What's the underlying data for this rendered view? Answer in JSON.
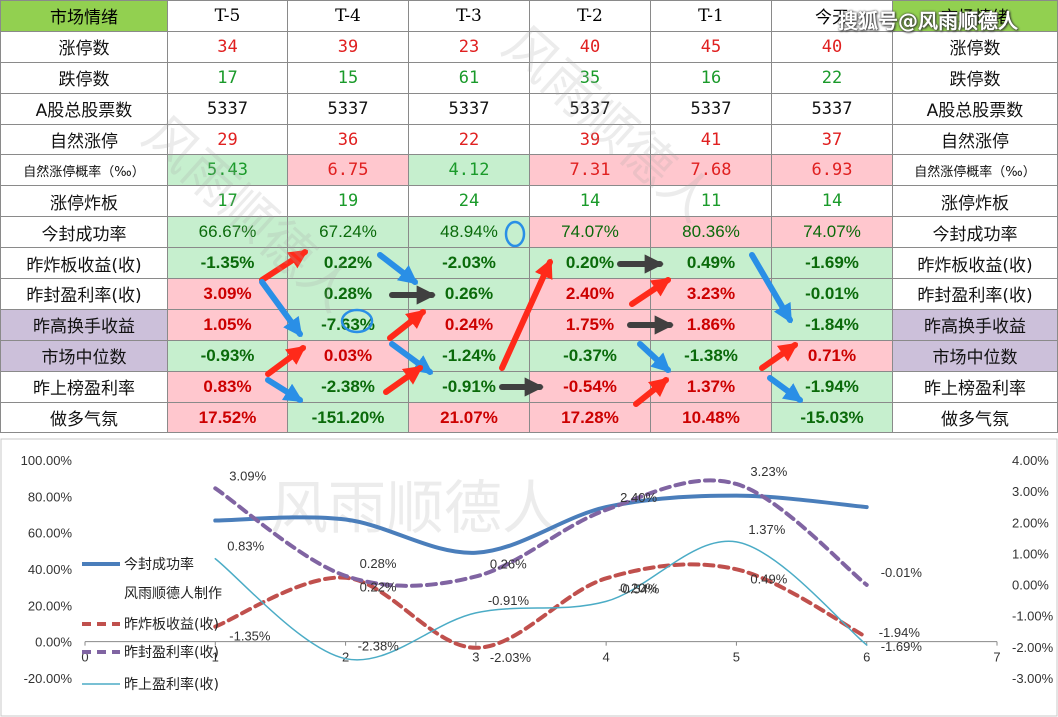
{
  "table": {
    "header": [
      "市场情绪",
      "T-5",
      "T-4",
      "T-3",
      "T-2",
      "T-1",
      "今天",
      "市场情绪"
    ],
    "rows": [
      {
        "label": "涨停数",
        "kind": "num",
        "color": "red",
        "values": [
          "34",
          "39",
          "23",
          "40",
          "45",
          "40"
        ],
        "bg": [
          "w",
          "w",
          "w",
          "w",
          "w",
          "w"
        ]
      },
      {
        "label": "跌停数",
        "kind": "num",
        "color": "green",
        "values": [
          "17",
          "15",
          "61",
          "35",
          "16",
          "22"
        ],
        "bg": [
          "w",
          "w",
          "w",
          "w",
          "w",
          "w"
        ]
      },
      {
        "label": "A股总股票数",
        "kind": "num",
        "color": "black",
        "values": [
          "5337",
          "5337",
          "5337",
          "5337",
          "5337",
          "5337"
        ],
        "bg": [
          "w",
          "w",
          "w",
          "w",
          "w",
          "w"
        ]
      },
      {
        "label": "自然涨停",
        "kind": "num",
        "color": "red",
        "values": [
          "29",
          "36",
          "22",
          "39",
          "41",
          "37"
        ],
        "bg": [
          "w",
          "w",
          "w",
          "w",
          "w",
          "w"
        ]
      },
      {
        "label": "自然涨停概率（‰）",
        "kind": "num",
        "color": "mixed",
        "small": true,
        "values": [
          "5.43",
          "6.75",
          "4.12",
          "7.31",
          "7.68",
          "6.93"
        ],
        "colors": [
          "green",
          "red",
          "green",
          "red",
          "red",
          "red"
        ],
        "bg": [
          "g",
          "r",
          "g",
          "r",
          "r",
          "r"
        ]
      },
      {
        "label": "涨停炸板",
        "kind": "num",
        "color": "green",
        "values": [
          "17",
          "19",
          "24",
          "14",
          "11",
          "14"
        ],
        "bg": [
          "w",
          "w",
          "w",
          "w",
          "w",
          "w"
        ]
      },
      {
        "label": "今封成功率",
        "kind": "pctn",
        "values": [
          "66.67%",
          "67.24%",
          "48.94%",
          "74.07%",
          "80.36%",
          "74.07%"
        ],
        "bg": [
          "g",
          "g",
          "g",
          "r",
          "r",
          "r"
        ]
      },
      {
        "label": "昨炸板收益(收)",
        "kind": "pct",
        "values": [
          "-1.35%",
          "0.22%",
          "-2.03%",
          "0.20%",
          "0.49%",
          "-1.69%"
        ],
        "bg": [
          "g",
          "g",
          "g",
          "g",
          "g",
          "g"
        ]
      },
      {
        "label": "昨封盈利率(收)",
        "kind": "pct",
        "values": [
          "3.09%",
          "0.28%",
          "0.26%",
          "2.40%",
          "3.23%",
          "-0.01%"
        ],
        "bg": [
          "r",
          "g",
          "g",
          "r",
          "r",
          "g"
        ]
      },
      {
        "label": "昨高换手收益",
        "kind": "pct",
        "purple": true,
        "values": [
          "1.05%",
          "-7.63%",
          "0.24%",
          "1.75%",
          "1.86%",
          "-1.84%"
        ],
        "bg": [
          "r",
          "g",
          "r",
          "r",
          "r",
          "g"
        ]
      },
      {
        "label": "市场中位数",
        "kind": "pct",
        "purple": true,
        "values": [
          "-0.93%",
          "0.03%",
          "-1.24%",
          "-0.37%",
          "-1.38%",
          "0.71%"
        ],
        "bg": [
          "g",
          "r",
          "g",
          "g",
          "g",
          "r"
        ]
      },
      {
        "label": "昨上榜盈利率",
        "kind": "pct",
        "values": [
          "0.83%",
          "-2.38%",
          "-0.91%",
          "-0.54%",
          "1.37%",
          "-1.94%"
        ],
        "bg": [
          "r",
          "g",
          "g",
          "r",
          "r",
          "g"
        ]
      },
      {
        "label": "做多气氛",
        "kind": "pct",
        "values": [
          "17.52%",
          "-151.20%",
          "21.07%",
          "17.28%",
          "10.48%",
          "-15.03%"
        ],
        "bg": [
          "r",
          "g",
          "r",
          "r",
          "r",
          "g"
        ]
      }
    ]
  },
  "brand_text": "搜狐号@风雨顺德人",
  "watermark_text": "风雨顺德人",
  "colors": {
    "green_bg": "#c6efce",
    "red_bg": "#ffc7ce",
    "purple_bg": "#ccc0da",
    "header_bg": "#92d050",
    "arrow_red": "#ff2a1a",
    "arrow_blue": "#2a8fe6",
    "arrow_gray": "#404040"
  },
  "chart_data": {
    "type": "line",
    "x": [
      1,
      2,
      3,
      4,
      5,
      6
    ],
    "xlim": [
      0,
      7
    ],
    "xticks": [
      "0",
      "1",
      "2",
      "3",
      "4",
      "5",
      "6",
      "7"
    ],
    "y_left_ticks": [
      "-20.00%",
      "0.00%",
      "20.00%",
      "40.00%",
      "60.00%",
      "80.00%",
      "100.00%"
    ],
    "y_right_ticks": [
      "-3.00%",
      "-2.00%",
      "-1.00%",
      "0.00%",
      "1.00%",
      "2.00%",
      "3.00%",
      "4.00%"
    ],
    "ylim_left": [
      -20,
      100
    ],
    "ylim_right": [
      -3,
      4
    ],
    "series": [
      {
        "name": "今封成功率",
        "axis": "left",
        "style": "solid-thick",
        "color": "#4a7ebb",
        "values": [
          66.67,
          67.24,
          48.94,
          74.07,
          80.36,
          74.07
        ]
      },
      {
        "name": "昨炸板收益(收)",
        "axis": "right",
        "style": "dashed",
        "color": "#c0504d",
        "values": [
          -1.35,
          0.22,
          -2.03,
          0.2,
          0.49,
          -1.69
        ]
      },
      {
        "name": "昨封盈利率(收)",
        "axis": "right",
        "style": "dashed",
        "color": "#8064a2",
        "values": [
          3.09,
          0.28,
          0.26,
          2.4,
          3.23,
          -0.01
        ]
      },
      {
        "name": "昨上盈利率(收)",
        "axis": "right",
        "style": "solid-thin",
        "color": "#4bacc6",
        "values": [
          0.83,
          -2.38,
          -0.91,
          -0.54,
          1.37,
          -1.94
        ]
      }
    ],
    "data_labels": [
      {
        "text": "3.09%",
        "series": 2,
        "i": 0
      },
      {
        "text": "0.28%",
        "series": 2,
        "i": 1
      },
      {
        "text": "0.26%",
        "series": 2,
        "i": 2
      },
      {
        "text": "2.40%",
        "series": 2,
        "i": 3
      },
      {
        "text": "3.23%",
        "series": 2,
        "i": 4
      },
      {
        "text": "-0.01%",
        "series": 2,
        "i": 5
      },
      {
        "text": "-1.35%",
        "series": 1,
        "i": 0
      },
      {
        "text": "0.22%",
        "series": 1,
        "i": 1
      },
      {
        "text": "-2.03%",
        "series": 1,
        "i": 2
      },
      {
        "text": "0.20%",
        "series": 1,
        "i": 3
      },
      {
        "text": "0.49%",
        "series": 1,
        "i": 4
      },
      {
        "text": "-1.69%",
        "series": 1,
        "i": 5
      },
      {
        "text": "0.83%",
        "series": 3,
        "i": 0
      },
      {
        "text": "-2.38%",
        "series": 3,
        "i": 1
      },
      {
        "text": "-0.91%",
        "series": 3,
        "i": 2
      },
      {
        "text": "-0.54%",
        "series": 3,
        "i": 3
      },
      {
        "text": "1.37%",
        "series": 3,
        "i": 4
      },
      {
        "text": "-1.94%",
        "series": 3,
        "i": 5
      }
    ],
    "legend_note": "风雨顺德人制作",
    "legend_position": "left"
  }
}
